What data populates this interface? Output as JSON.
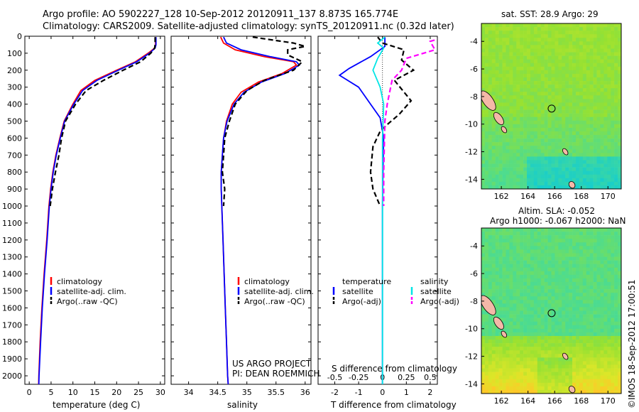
{
  "header": {
    "line1": "Argo profile: AO 5902227_128 10-Sep-2012 20120911_137 8.873S 165.774E",
    "line2": "Climatology: CARS2009. Satellite-adjusted climatology: synTS_20120911.nc (0.32d later)"
  },
  "colors": {
    "climatology": "#ff0000",
    "satellite": "#0000ff",
    "argo": "#000000",
    "satellite_salinity": "#00e5e5",
    "argo_salinity": "#ff00ff"
  },
  "chart_data": [
    {
      "id": "temperature",
      "type": "line",
      "xlabel": "temperature (deg C)",
      "ylabel": "",
      "xlim": [
        -1,
        31
      ],
      "ylim": [
        0,
        2050
      ],
      "y_inverted": true,
      "xticks": [
        "0",
        "5",
        "10",
        "15",
        "20",
        "25",
        "30"
      ],
      "yticks": [
        "0",
        "100",
        "200",
        "300",
        "400",
        "500",
        "600",
        "700",
        "800",
        "900",
        "1000",
        "1100",
        "1200",
        "1300",
        "1400",
        "1500",
        "1600",
        "1700",
        "1800",
        "1900",
        "2000"
      ],
      "legend": [
        "climatology",
        "satellite-adj. clim.",
        "Argo(..raw -QC)"
      ],
      "legend_placement": "lower-center",
      "series": [
        {
          "name": "climatology",
          "style": "solid",
          "color": "#ff0000",
          "points": [
            [
              28.9,
              5
            ],
            [
              28.9,
              50
            ],
            [
              28.7,
              70
            ],
            [
              27.2,
              100
            ],
            [
              24.3,
              150
            ],
            [
              20.0,
              200
            ],
            [
              15.0,
              260
            ],
            [
              11.8,
              320
            ],
            [
              10.0,
              400
            ],
            [
              8.0,
              500
            ],
            [
              7.0,
              600
            ],
            [
              6.1,
              700
            ],
            [
              5.4,
              800
            ],
            [
              4.9,
              900
            ],
            [
              4.5,
              1000
            ],
            [
              4.0,
              1200
            ],
            [
              3.4,
              1400
            ],
            [
              2.9,
              1600
            ],
            [
              2.5,
              1800
            ],
            [
              2.2,
              2000
            ],
            [
              2.15,
              2050
            ]
          ]
        },
        {
          "name": "satellite-adj. clim.",
          "style": "solid",
          "color": "#0000ff",
          "points": [
            [
              29.0,
              5
            ],
            [
              29.0,
              50
            ],
            [
              28.8,
              70
            ],
            [
              27.5,
              100
            ],
            [
              24.6,
              150
            ],
            [
              20.4,
              200
            ],
            [
              15.5,
              260
            ],
            [
              12.2,
              320
            ],
            [
              10.2,
              400
            ],
            [
              8.1,
              500
            ],
            [
              7.1,
              600
            ],
            [
              6.2,
              700
            ],
            [
              5.5,
              800
            ],
            [
              5.0,
              900
            ],
            [
              4.6,
              1000
            ],
            [
              4.1,
              1200
            ],
            [
              3.5,
              1400
            ],
            [
              3.0,
              1600
            ],
            [
              2.6,
              1800
            ],
            [
              2.25,
              2000
            ],
            [
              2.2,
              2050
            ]
          ]
        },
        {
          "name": "Argo(..raw -QC)",
          "style": "dashed",
          "color": "#000000",
          "points": [
            [
              28.8,
              5
            ],
            [
              28.8,
              50
            ],
            [
              28.7,
              70
            ],
            [
              27.8,
              100
            ],
            [
              25.5,
              150
            ],
            [
              21.5,
              200
            ],
            [
              17.0,
              260
            ],
            [
              13.0,
              320
            ],
            [
              10.6,
              400
            ],
            [
              8.3,
              500
            ],
            [
              7.4,
              600
            ],
            [
              6.8,
              700
            ],
            [
              6.0,
              800
            ],
            [
              5.3,
              900
            ],
            [
              4.8,
              1000
            ]
          ]
        }
      ]
    },
    {
      "id": "salinity",
      "type": "line",
      "xlabel": "salinity",
      "ylabel": "",
      "xlim": [
        33.7,
        36.1
      ],
      "ylim": [
        0,
        2050
      ],
      "y_inverted": true,
      "xticks": [
        "34",
        "34.5",
        "35",
        "35.5",
        "36"
      ],
      "legend": [
        "climatology",
        "satellite-adj. clim.",
        "Argo(..raw -QC)"
      ],
      "legend_placement": "lower-center",
      "series": [
        {
          "name": "climatology",
          "style": "solid",
          "color": "#ff0000",
          "points": [
            [
              34.55,
              5
            ],
            [
              34.6,
              40
            ],
            [
              34.8,
              80
            ],
            [
              35.3,
              120
            ],
            [
              35.8,
              150
            ],
            [
              35.85,
              170
            ],
            [
              35.6,
              220
            ],
            [
              35.2,
              270
            ],
            [
              34.9,
              330
            ],
            [
              34.75,
              400
            ],
            [
              34.65,
              500
            ],
            [
              34.6,
              600
            ],
            [
              34.58,
              700
            ],
            [
              34.56,
              800
            ],
            [
              34.56,
              900
            ],
            [
              34.57,
              1000
            ],
            [
              34.59,
              1200
            ],
            [
              34.61,
              1400
            ],
            [
              34.63,
              1600
            ],
            [
              34.65,
              1800
            ],
            [
              34.67,
              2000
            ],
            [
              34.68,
              2050
            ]
          ]
        },
        {
          "name": "satellite-adj. clim.",
          "style": "solid",
          "color": "#0000ff",
          "points": [
            [
              34.6,
              5
            ],
            [
              34.65,
              40
            ],
            [
              34.9,
              80
            ],
            [
              35.4,
              120
            ],
            [
              35.85,
              150
            ],
            [
              35.9,
              170
            ],
            [
              35.65,
              220
            ],
            [
              35.25,
              270
            ],
            [
              34.95,
              330
            ],
            [
              34.78,
              400
            ],
            [
              34.66,
              500
            ],
            [
              34.6,
              600
            ],
            [
              34.58,
              700
            ],
            [
              34.56,
              800
            ],
            [
              34.56,
              900
            ],
            [
              34.57,
              1000
            ],
            [
              34.59,
              1200
            ],
            [
              34.61,
              1400
            ],
            [
              34.63,
              1600
            ],
            [
              34.65,
              1800
            ],
            [
              34.67,
              2000
            ],
            [
              34.68,
              2050
            ]
          ]
        },
        {
          "name": "Argo(..raw -QC)",
          "style": "dashed",
          "color": "#000000",
          "points": [
            [
              35.1,
              5
            ],
            [
              35.4,
              20
            ],
            [
              35.8,
              40
            ],
            [
              36.0,
              60
            ],
            [
              35.7,
              80
            ],
            [
              35.7,
              110
            ],
            [
              35.95,
              150
            ],
            [
              35.8,
              200
            ],
            [
              35.3,
              260
            ],
            [
              35.0,
              320
            ],
            [
              34.8,
              400
            ],
            [
              34.7,
              500
            ],
            [
              34.62,
              600
            ],
            [
              34.6,
              700
            ],
            [
              34.58,
              800
            ],
            [
              34.62,
              900
            ],
            [
              34.6,
              1000
            ]
          ]
        }
      ]
    },
    {
      "id": "difference",
      "type": "line",
      "xlabel": "T difference from climatology",
      "top_axis_label": "S difference from climatology",
      "xlim": [
        -2.7,
        2.3
      ],
      "ylim": [
        0,
        2050
      ],
      "y_inverted": true,
      "xticks": [
        "-2",
        "-1",
        "0",
        "1",
        "2"
      ],
      "top_xticks": [
        "-0.5",
        "-0.25",
        "0",
        "0.25",
        "0.5"
      ],
      "legend_groups": [
        {
          "title": "temperature",
          "entries": [
            "satellite",
            "Argo(-adj)"
          ]
        },
        {
          "title": "salinity",
          "entries": [
            "satellite",
            "Argo(-adj)"
          ]
        }
      ],
      "legend_placement": "lower-center",
      "series": [
        {
          "name": "satellite",
          "variable": "temperature",
          "style": "solid",
          "color": "#0000ff",
          "points": [
            [
              0.1,
              5
            ],
            [
              0.1,
              60
            ],
            [
              -0.5,
              120
            ],
            [
              -1.4,
              190
            ],
            [
              -1.8,
              230
            ],
            [
              -1.0,
              300
            ],
            [
              -0.5,
              400
            ],
            [
              -0.1,
              480
            ],
            [
              0.05,
              600
            ],
            [
              0.02,
              800
            ],
            [
              0.0,
              1000
            ],
            [
              0.0,
              1500
            ],
            [
              0.0,
              2050
            ]
          ]
        },
        {
          "name": "Argo(-adj)",
          "variable": "temperature",
          "style": "dashed",
          "color": "#000000",
          "points": [
            [
              -0.2,
              5
            ],
            [
              0.0,
              40
            ],
            [
              0.9,
              80
            ],
            [
              0.8,
              140
            ],
            [
              1.3,
              200
            ],
            [
              0.5,
              260
            ],
            [
              1.2,
              380
            ],
            [
              0.7,
              460
            ],
            [
              0.2,
              520
            ],
            [
              -0.1,
              560
            ],
            [
              -0.4,
              650
            ],
            [
              -0.5,
              800
            ],
            [
              -0.4,
              900
            ],
            [
              -0.1,
              1000
            ]
          ]
        },
        {
          "name": "satellite",
          "variable": "salinity",
          "style": "solid",
          "color": "#00e5e5",
          "points": [
            [
              0.1,
              5
            ],
            [
              -0.2,
              40
            ],
            [
              0.05,
              70
            ],
            [
              -0.2,
              130
            ],
            [
              -0.4,
              200
            ],
            [
              -0.1,
              300
            ],
            [
              0.05,
              400
            ],
            [
              0.0,
              600
            ],
            [
              0.0,
              1000
            ],
            [
              0.0,
              2050
            ]
          ]
        },
        {
          "name": "Argo(-adj)",
          "variable": "salinity",
          "style": "dashed",
          "color": "#ff00ff",
          "points": [
            [
              2.5,
              10
            ],
            [
              2.0,
              30
            ],
            [
              2.2,
              80
            ],
            [
              1.0,
              130
            ],
            [
              0.8,
              200
            ],
            [
              0.4,
              260
            ],
            [
              0.2,
              400
            ],
            [
              0.1,
              500
            ],
            [
              0.05,
              800
            ],
            [
              0.05,
              1000
            ]
          ]
        }
      ]
    },
    {
      "id": "sst_map",
      "type": "heatmap",
      "title": "sat. SST: 28.9 Argo: 29",
      "xlim": [
        160.5,
        171
      ],
      "ylim": [
        -14.7,
        -2.7
      ],
      "xticks": [
        "162",
        "164",
        "166",
        "168",
        "170"
      ],
      "yticks": [
        "-4",
        "-6",
        "-8",
        "-10",
        "-12",
        "-14"
      ],
      "marker": {
        "lon": 165.774,
        "lat": -8.873
      },
      "scale": "SST"
    },
    {
      "id": "sla_map",
      "type": "heatmap",
      "title": "Altim. SLA: -0.052",
      "subtitle": "Argo h1000: -0.067 h2000: NaN",
      "xlim": [
        160.5,
        171
      ],
      "ylim": [
        -14.7,
        -2.7
      ],
      "xticks": [
        "162",
        "164",
        "166",
        "168",
        "170"
      ],
      "yticks": [
        "-4",
        "-6",
        "-8",
        "-10",
        "-12",
        "-14"
      ],
      "marker": {
        "lon": 165.774,
        "lat": -8.873
      },
      "scale": "SLA"
    }
  ],
  "annotations": {
    "project_line1": "US ARGO PROJECT",
    "project_line2": "PI: DEAN ROEMMICH",
    "timestamp": "©IMOS 18-Sep-2012 17:00:51"
  }
}
